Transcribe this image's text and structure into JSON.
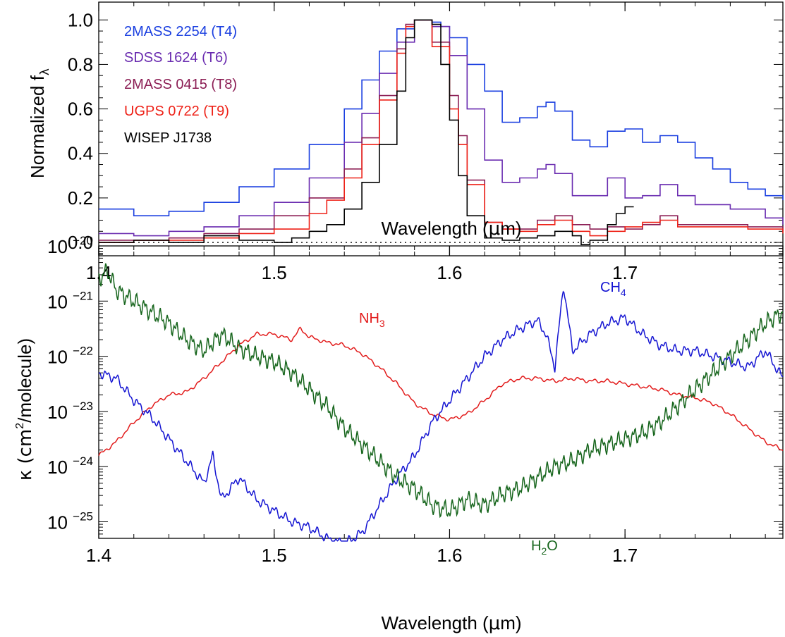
{
  "chart_data": [
    {
      "type": "line",
      "style": "step",
      "xlabel_main": "Wavelength (",
      "xlabel_mu": "μ",
      "xlabel_tail": "m)",
      "ylabel_main": "Normalized f",
      "ylabel_sub": "λ",
      "xlim": [
        1.4,
        1.79
      ],
      "ylim": [
        -0.06,
        1.08
      ],
      "xticks": [
        "1.4",
        "1.5",
        "1.6",
        "1.7"
      ],
      "yticks": [
        "0.0",
        "0.2",
        "0.4",
        "0.6",
        "0.8",
        "1.0"
      ],
      "reference_line": {
        "y": 0.0,
        "style": "dotted"
      },
      "series": [
        {
          "name": "2MASS 2254 (T4)",
          "color": "#1a3fe0",
          "x": [
            1.4,
            1.42,
            1.44,
            1.46,
            1.48,
            1.5,
            1.52,
            1.54,
            1.55,
            1.56,
            1.57,
            1.58,
            1.59,
            1.595,
            1.6,
            1.61,
            1.62,
            1.63,
            1.64,
            1.65,
            1.655,
            1.66,
            1.67,
            1.68,
            1.69,
            1.7,
            1.71,
            1.72,
            1.73,
            1.74,
            1.75,
            1.76,
            1.77,
            1.78,
            1.79
          ],
          "y": [
            0.15,
            0.12,
            0.14,
            0.18,
            0.25,
            0.33,
            0.44,
            0.6,
            0.73,
            0.86,
            0.96,
            1.0,
            0.99,
            0.97,
            0.92,
            0.8,
            0.68,
            0.54,
            0.56,
            0.61,
            0.63,
            0.59,
            0.46,
            0.43,
            0.5,
            0.51,
            0.45,
            0.48,
            0.45,
            0.38,
            0.33,
            0.27,
            0.24,
            0.21,
            0.19
          ]
        },
        {
          "name": "SDSS 1624 (T6)",
          "color": "#6a2cb0",
          "x": [
            1.4,
            1.42,
            1.44,
            1.46,
            1.48,
            1.5,
            1.52,
            1.54,
            1.55,
            1.56,
            1.57,
            1.58,
            1.59,
            1.6,
            1.61,
            1.62,
            1.63,
            1.64,
            1.65,
            1.655,
            1.66,
            1.67,
            1.68,
            1.69,
            1.7,
            1.71,
            1.72,
            1.73,
            1.74,
            1.76,
            1.78,
            1.79
          ],
          "y": [
            0.04,
            0.03,
            0.05,
            0.07,
            0.12,
            0.18,
            0.29,
            0.45,
            0.58,
            0.76,
            0.9,
            1.0,
            0.97,
            0.84,
            0.6,
            0.37,
            0.27,
            0.29,
            0.33,
            0.35,
            0.31,
            0.21,
            0.21,
            0.29,
            0.2,
            0.21,
            0.26,
            0.21,
            0.17,
            0.15,
            0.11,
            0.08
          ]
        },
        {
          "name": "2MASS 0415 (T8)",
          "color": "#8c1f55",
          "x": [
            1.4,
            1.42,
            1.44,
            1.46,
            1.48,
            1.5,
            1.52,
            1.54,
            1.55,
            1.56,
            1.57,
            1.575,
            1.58,
            1.59,
            1.6,
            1.605,
            1.61,
            1.62,
            1.63,
            1.64,
            1.65,
            1.66,
            1.67,
            1.68,
            1.69,
            1.7,
            1.71,
            1.72,
            1.73,
            1.75,
            1.77,
            1.79
          ],
          "y": [
            0.01,
            0.01,
            0.02,
            0.04,
            0.06,
            0.12,
            0.2,
            0.33,
            0.47,
            0.66,
            0.87,
            0.98,
            1.0,
            0.9,
            0.66,
            0.48,
            0.28,
            0.09,
            0.06,
            0.06,
            0.1,
            0.12,
            0.08,
            0.06,
            0.07,
            0.06,
            0.08,
            0.12,
            0.08,
            0.08,
            0.07,
            0.05
          ]
        },
        {
          "name": "UGPS 0722 (T9)",
          "color": "#ee2218",
          "x": [
            1.4,
            1.42,
            1.44,
            1.46,
            1.48,
            1.5,
            1.52,
            1.53,
            1.54,
            1.55,
            1.56,
            1.57,
            1.575,
            1.58,
            1.59,
            1.6,
            1.605,
            1.61,
            1.62,
            1.63,
            1.64,
            1.65,
            1.66,
            1.67,
            1.68,
            1.69,
            1.7,
            1.71,
            1.72,
            1.73,
            1.75,
            1.77,
            1.79
          ],
          "y": [
            0.0,
            0.01,
            0.01,
            0.02,
            0.04,
            0.06,
            0.13,
            0.19,
            0.29,
            0.44,
            0.64,
            0.85,
            0.97,
            1.0,
            0.88,
            0.6,
            0.44,
            0.26,
            0.09,
            0.06,
            0.05,
            0.08,
            0.1,
            0.05,
            0.03,
            0.05,
            0.07,
            0.09,
            0.1,
            0.07,
            0.07,
            0.06,
            0.04
          ]
        },
        {
          "name": "WISEP J1738",
          "color": "#000000",
          "x": [
            1.4,
            1.42,
            1.44,
            1.46,
            1.48,
            1.5,
            1.51,
            1.52,
            1.53,
            1.54,
            1.55,
            1.56,
            1.57,
            1.575,
            1.58,
            1.59,
            1.595,
            1.6,
            1.605,
            1.61,
            1.62,
            1.63,
            1.64,
            1.65,
            1.66,
            1.67,
            1.675,
            1.68,
            1.69,
            1.695,
            1.7
          ],
          "y": [
            0.0,
            0.01,
            0.0,
            0.03,
            0.01,
            0.0,
            0.02,
            0.05,
            0.08,
            0.15,
            0.27,
            0.44,
            0.68,
            0.92,
            1.0,
            0.98,
            0.8,
            0.55,
            0.3,
            0.12,
            0.02,
            0.01,
            0.02,
            0.03,
            0.05,
            0.03,
            -0.01,
            0.01,
            0.08,
            0.13,
            0.16
          ]
        }
      ]
    },
    {
      "type": "line",
      "ylabel_main": "κ (cm",
      "ylabel_sup": "2",
      "ylabel_tail": "/molecule)",
      "xlabel_main": "Wavelength (",
      "xlabel_mu": "μ",
      "xlabel_tail": "m)",
      "xlim": [
        1.4,
        1.79
      ],
      "ylim": [
        -25.3,
        -20.0
      ],
      "yscale": "log",
      "xticks": [
        "1.4",
        "1.5",
        "1.6",
        "1.7"
      ],
      "yticks": [
        {
          "base": "10",
          "exp": "−20",
          "value": -20
        },
        {
          "base": "10",
          "exp": "−21",
          "value": -21
        },
        {
          "base": "10",
          "exp": "−22",
          "value": -22
        },
        {
          "base": "10",
          "exp": "−23",
          "value": -23
        },
        {
          "base": "10",
          "exp": "−24",
          "value": -24
        },
        {
          "base": "10",
          "exp": "−25",
          "value": -25
        }
      ],
      "series": [
        {
          "name": "NH3",
          "label_main": "NH",
          "label_sub": "3",
          "color": "#e21b1b",
          "x": [
            1.4,
            1.41,
            1.42,
            1.43,
            1.44,
            1.45,
            1.46,
            1.47,
            1.48,
            1.49,
            1.5,
            1.51,
            1.515,
            1.52,
            1.53,
            1.54,
            1.55,
            1.56,
            1.57,
            1.58,
            1.59,
            1.6,
            1.61,
            1.62,
            1.63,
            1.64,
            1.65,
            1.66,
            1.67,
            1.68,
            1.69,
            1.7,
            1.71,
            1.72,
            1.73,
            1.74,
            1.75,
            1.76,
            1.77,
            1.78,
            1.79
          ],
          "y": [
            -23.8,
            -23.55,
            -23.2,
            -22.9,
            -22.7,
            -22.65,
            -22.4,
            -22.1,
            -21.8,
            -21.6,
            -21.6,
            -21.7,
            -21.5,
            -21.65,
            -21.75,
            -21.8,
            -21.95,
            -22.2,
            -22.5,
            -22.85,
            -23.05,
            -23.15,
            -23.05,
            -22.8,
            -22.5,
            -22.4,
            -22.4,
            -22.45,
            -22.4,
            -22.45,
            -22.45,
            -22.5,
            -22.55,
            -22.6,
            -22.7,
            -22.75,
            -22.85,
            -23.05,
            -23.3,
            -23.55,
            -23.7
          ]
        },
        {
          "name": "CH4",
          "label_main": "CH",
          "label_sub": "4",
          "color": "#1414d2",
          "x": [
            1.4,
            1.41,
            1.42,
            1.43,
            1.44,
            1.45,
            1.46,
            1.465,
            1.47,
            1.48,
            1.49,
            1.5,
            1.51,
            1.52,
            1.53,
            1.54,
            1.55,
            1.56,
            1.57,
            1.58,
            1.59,
            1.6,
            1.61,
            1.62,
            1.63,
            1.64,
            1.65,
            1.655,
            1.66,
            1.665,
            1.67,
            1.68,
            1.69,
            1.7,
            1.71,
            1.72,
            1.73,
            1.74,
            1.75,
            1.76,
            1.77,
            1.78,
            1.79
          ],
          "y": [
            -22.3,
            -22.4,
            -22.8,
            -23.1,
            -23.5,
            -23.9,
            -24.3,
            -23.8,
            -24.6,
            -24.2,
            -24.6,
            -24.8,
            -25.0,
            -25.1,
            -25.3,
            -25.4,
            -25.2,
            -24.7,
            -24.2,
            -23.8,
            -23.2,
            -22.8,
            -22.4,
            -22.0,
            -21.7,
            -21.5,
            -21.35,
            -21.6,
            -22.2,
            -20.7,
            -21.9,
            -21.6,
            -21.4,
            -21.3,
            -21.6,
            -21.8,
            -21.9,
            -21.9,
            -22.0,
            -22.1,
            -22.2,
            -21.9,
            -22.4
          ]
        },
        {
          "name": "H2O",
          "label_main": "H",
          "label_sub": "2",
          "label_tail": "O",
          "color": "#16651c",
          "x": [
            1.4,
            1.405,
            1.41,
            1.42,
            1.43,
            1.44,
            1.45,
            1.46,
            1.47,
            1.48,
            1.49,
            1.5,
            1.51,
            1.52,
            1.53,
            1.54,
            1.55,
            1.56,
            1.57,
            1.58,
            1.59,
            1.6,
            1.61,
            1.62,
            1.63,
            1.64,
            1.65,
            1.66,
            1.67,
            1.68,
            1.69,
            1.7,
            1.71,
            1.72,
            1.73,
            1.74,
            1.75,
            1.76,
            1.77,
            1.78,
            1.79
          ],
          "y": [
            -20.6,
            -20.45,
            -20.8,
            -21.0,
            -21.2,
            -21.4,
            -21.7,
            -21.9,
            -21.6,
            -21.85,
            -22.0,
            -22.1,
            -22.3,
            -22.6,
            -22.9,
            -23.3,
            -23.6,
            -23.9,
            -24.2,
            -24.4,
            -24.7,
            -24.8,
            -24.6,
            -24.7,
            -24.5,
            -24.4,
            -24.2,
            -24.0,
            -23.9,
            -23.7,
            -23.6,
            -23.5,
            -23.4,
            -23.2,
            -22.9,
            -22.6,
            -22.3,
            -22.0,
            -21.7,
            -21.4,
            -21.2
          ]
        }
      ]
    }
  ]
}
